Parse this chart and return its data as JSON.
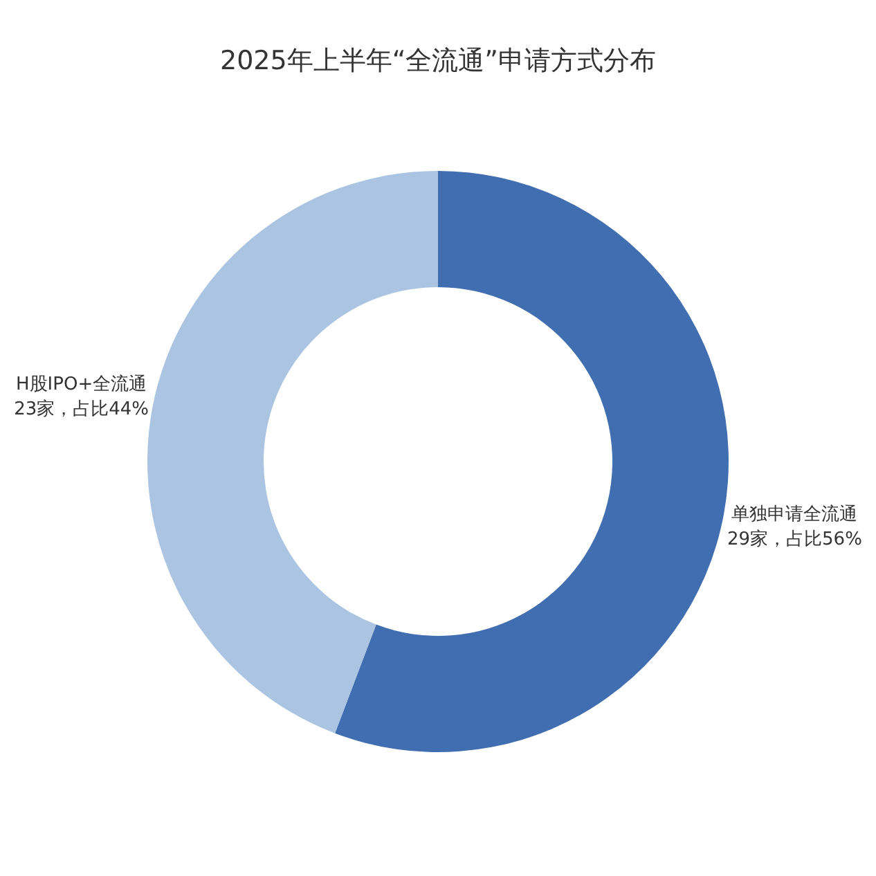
{
  "chart_data": {
    "type": "donut",
    "title": "2025年上半年“全流通”申请方式分布",
    "categories": [
      "单独申请全流通",
      "H股IPO+全流通"
    ],
    "values": [
      29,
      23
    ],
    "colors": [
      "#416eb0",
      "#aac4e2"
    ],
    "value_labels": [
      "29家，占比56%",
      "23家，占比44%"
    ],
    "legend": false
  }
}
